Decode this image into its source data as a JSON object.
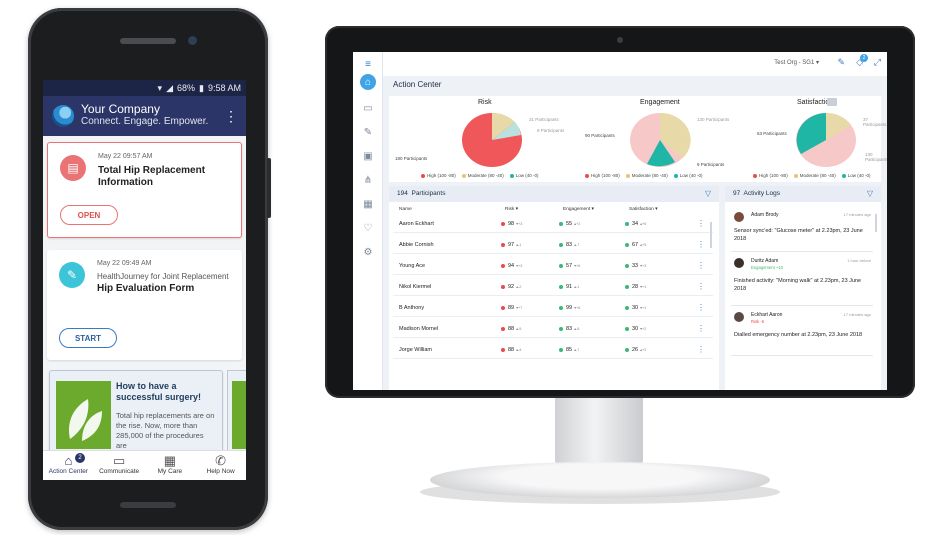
{
  "phone": {
    "status": {
      "wifi": "▾",
      "signal": "◢",
      "battery": "68%",
      "battery_icon": "▮",
      "time": "9:58 AM"
    },
    "appbar": {
      "company": "Your Company",
      "tagline": "Connect. Engage. Empower."
    },
    "cards": [
      {
        "date": "May 22 09:57 AM",
        "subtitle": "",
        "title": "Total Hip Replacement Information",
        "button": "OPEN",
        "accent": "#e97375"
      },
      {
        "date": "May 22 09:49 AM",
        "subtitle": "HealthJourney for Joint Replacement",
        "title": "Hip Evaluation Form",
        "button": "START",
        "accent": "#3cc4d8"
      }
    ],
    "article": {
      "title": "How to have a successful surgery!",
      "body": "Total hip replacements are on the rise. Now, more than 285,000 of the procedures are"
    },
    "nav": [
      {
        "label": "Action Center",
        "icon": "home-icon",
        "badge": "2"
      },
      {
        "label": "Communicate",
        "icon": "chat-icon"
      },
      {
        "label": "My Care",
        "icon": "calendar-icon"
      },
      {
        "label": "Help Now",
        "icon": "phone-icon"
      }
    ]
  },
  "dashboard": {
    "title": "Action Center",
    "org": "Test Org - SG1 ▾",
    "topbar_badge": "2",
    "charts": [
      {
        "title": "Risk",
        "labels": {
          "top1": "31 Participants",
          "top2": "9 Participants",
          "left": "180 Participants"
        }
      },
      {
        "title": "Engagement",
        "labels": {
          "top": "130 Participants",
          "left": "90 Participants",
          "right": "9 Participants"
        }
      },
      {
        "title": "Satisfaction",
        "labels": {
          "top": "37 Participants",
          "left": "63 Participants",
          "right": "130 Participants"
        }
      }
    ],
    "legend": [
      "High (100 -80)",
      "Moderate (80 -40)",
      "Low (40 -0)"
    ],
    "participants": {
      "count": "194",
      "label": "Participants",
      "columns": [
        "Name",
        "Risk ▾",
        "Engagement ▾",
        "Satisfaction ▾"
      ],
      "rows": [
        {
          "name": "Aaron Eckhart",
          "risk": "98",
          "risk_d": "▾+3",
          "eng": "55",
          "eng_d": "▴+2",
          "sat": "34",
          "sat_d": "▴+6",
          "risk_c": "#e84b4b",
          "eng_c": "#3cb878",
          "sat_c": "#3cb878"
        },
        {
          "name": "Abbie Cornish",
          "risk": "97",
          "risk_d": "▴-1",
          "eng": "83",
          "eng_d": "▴-7",
          "sat": "67",
          "sat_d": "▴+5",
          "risk_c": "#e84b4b",
          "eng_c": "#3cb878",
          "sat_c": "#3cb878"
        },
        {
          "name": "Young Ace",
          "risk": "94",
          "risk_d": "▾+3",
          "eng": "57",
          "eng_d": "▾+6",
          "sat": "33",
          "sat_d": "▾+3",
          "risk_c": "#e84b4b",
          "eng_c": "#3cb878",
          "sat_c": "#3cb878"
        },
        {
          "name": "Nikol Kiermel",
          "risk": "92",
          "risk_d": "▴-2",
          "eng": "91",
          "eng_d": "▴-1",
          "sat": "28",
          "sat_d": "▾+1",
          "risk_c": "#e84b4b",
          "eng_c": "#3cb878",
          "sat_c": "#3cb878"
        },
        {
          "name": "B Anthony",
          "risk": "89",
          "risk_d": "▾+7",
          "eng": "99",
          "eng_d": "▾+6",
          "sat": "30",
          "sat_d": "▾+1",
          "risk_c": "#e84b4b",
          "eng_c": "#3cb878",
          "sat_c": "#3cb878"
        },
        {
          "name": "Madison Mornel",
          "risk": "88",
          "risk_d": "▴-5",
          "eng": "83",
          "eng_d": "▴-8",
          "sat": "30",
          "sat_d": "▾+2",
          "risk_c": "#e84b4b",
          "eng_c": "#3cb878",
          "sat_c": "#3cb878"
        },
        {
          "name": "Jorge William",
          "risk": "88",
          "risk_d": "▴-4",
          "eng": "85",
          "eng_d": "▴-7",
          "sat": "26",
          "sat_d": "▴+2",
          "risk_c": "#e84b4b",
          "eng_c": "#3cb878",
          "sat_c": "#3cb878"
        }
      ]
    },
    "activity": {
      "count": "97",
      "label": "Activity Logs",
      "items": [
        {
          "name": "Adam Brody",
          "tag": "",
          "time": "17 minutes ago",
          "msg": "Sensor sync'ed: \"Glucose meter\" at 2.23pm, 23 June 2018"
        },
        {
          "name": "Duritz Adam",
          "tag": "Engagement +10",
          "tag_color": "#3cb878",
          "time": "1 hour before",
          "msg": "Finished activity: \"Morning walk\" at 2.23pm, 23 June 2018"
        },
        {
          "name": "Eckhart Aaron",
          "tag": "Risk -5",
          "tag_color": "#e84b4b",
          "time": "17 minutes ago",
          "msg": "Dialled emergency number at 2.23pm, 23 June 2018"
        }
      ]
    }
  }
}
